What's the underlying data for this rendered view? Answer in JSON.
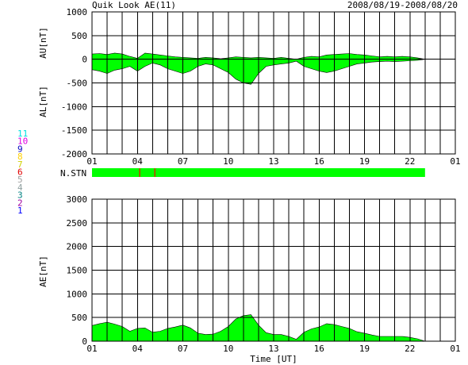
{
  "header": {
    "title": "Quik Look AE(11)",
    "date_range": "2008/08/19-2008/08/20"
  },
  "station_legend": {
    "labels": [
      "11",
      "10",
      "9",
      "8",
      "7",
      "6",
      "5",
      "4",
      "3",
      "2",
      "1"
    ],
    "colors": [
      "#00e0e0",
      "#e000e0",
      "#0000c0",
      "#ffd000",
      "#d0d000",
      "#e00000",
      "#a0a0a0",
      "#90a0a0",
      "#008080",
      "#a000a0",
      "#0000ff"
    ]
  },
  "colors": {
    "fill": "#00ff00",
    "line": "#000000",
    "grid": "#000000",
    "marker": "#ff0000"
  },
  "chart_data": [
    {
      "name": "au-al-panel",
      "type": "area",
      "ylabel_top": "AU[nT]",
      "ylabel_bottom": "AL[nT]",
      "ylim": [
        -2000,
        1000
      ],
      "yticks": [
        1000,
        500,
        0,
        -500,
        -1000,
        -1500,
        -2000
      ],
      "xlim": [
        1,
        25
      ],
      "xticks": [
        "01",
        "04",
        "07",
        "10",
        "13",
        "16",
        "19",
        "22",
        "01"
      ],
      "grid": true,
      "series": [
        {
          "key": "AU",
          "x": [
            1.0,
            1.5,
            2.0,
            2.5,
            3.0,
            3.5,
            4.0,
            4.5,
            5.0,
            5.5,
            6.0,
            6.5,
            7.0,
            7.5,
            8.0,
            8.5,
            9.0,
            9.5,
            10.0,
            10.5,
            11.0,
            11.5,
            12.0,
            12.5,
            13.0,
            13.5,
            14.0,
            14.5,
            15.0,
            15.5,
            16.0,
            16.5,
            17.0,
            17.5,
            18.0,
            18.5,
            19.0,
            19.5,
            20.0,
            20.5,
            21.0,
            21.5,
            22.0,
            22.5,
            23.0
          ],
          "values": [
            110,
            120,
            100,
            130,
            110,
            60,
            20,
            130,
            110,
            90,
            70,
            50,
            40,
            30,
            20,
            40,
            30,
            10,
            30,
            50,
            40,
            30,
            40,
            30,
            20,
            40,
            20,
            0,
            40,
            60,
            50,
            90,
            100,
            110,
            120,
            100,
            90,
            70,
            50,
            60,
            50,
            60,
            50,
            30,
            0
          ]
        },
        {
          "key": "AL",
          "x": [
            1.0,
            1.5,
            2.0,
            2.5,
            3.0,
            3.5,
            4.0,
            4.5,
            5.0,
            5.5,
            6.0,
            6.5,
            7.0,
            7.5,
            8.0,
            8.5,
            9.0,
            9.5,
            10.0,
            10.5,
            11.0,
            11.5,
            12.0,
            12.5,
            13.0,
            13.5,
            14.0,
            14.5,
            15.0,
            15.5,
            16.0,
            16.5,
            17.0,
            17.5,
            18.0,
            18.5,
            19.0,
            19.5,
            20.0,
            20.5,
            21.0,
            21.5,
            22.0,
            22.5,
            23.0
          ],
          "values": [
            -220,
            -250,
            -300,
            -230,
            -200,
            -150,
            -250,
            -150,
            -80,
            -120,
            -200,
            -250,
            -300,
            -250,
            -150,
            -100,
            -120,
            -200,
            -280,
            -420,
            -500,
            -530,
            -300,
            -150,
            -120,
            -100,
            -80,
            -40,
            -150,
            -200,
            -250,
            -280,
            -250,
            -200,
            -150,
            -100,
            -80,
            -60,
            -50,
            -40,
            -50,
            -40,
            -30,
            -20,
            0
          ]
        }
      ]
    },
    {
      "name": "n-stn-bar",
      "type": "bar",
      "label": "N.STN",
      "xlim": [
        1,
        25
      ],
      "coverage": [
        1,
        23
      ],
      "markers_x": [
        4.15,
        5.15
      ]
    },
    {
      "name": "ae-panel",
      "type": "area",
      "ylabel": "AE[nT]",
      "xlabel": "Time [UT]",
      "ylim": [
        0,
        3000
      ],
      "yticks": [
        3000,
        2500,
        2000,
        1500,
        1000,
        500,
        0
      ],
      "xlim": [
        1,
        25
      ],
      "xticks": [
        "01",
        "04",
        "07",
        "10",
        "13",
        "16",
        "19",
        "22",
        "01"
      ],
      "grid": true,
      "series": [
        {
          "key": "AE",
          "x": [
            1.0,
            1.5,
            2.0,
            2.5,
            3.0,
            3.5,
            4.0,
            4.5,
            5.0,
            5.5,
            6.0,
            6.5,
            7.0,
            7.5,
            8.0,
            8.5,
            9.0,
            9.5,
            10.0,
            10.5,
            11.0,
            11.5,
            12.0,
            12.5,
            13.0,
            13.5,
            14.0,
            14.5,
            15.0,
            15.5,
            16.0,
            16.5,
            17.0,
            17.5,
            18.0,
            18.5,
            19.0,
            19.5,
            20.0,
            20.5,
            21.0,
            21.5,
            22.0,
            22.5,
            23.0
          ],
          "values": [
            330,
            370,
            400,
            360,
            310,
            210,
            270,
            280,
            190,
            210,
            270,
            300,
            340,
            280,
            170,
            140,
            150,
            210,
            310,
            470,
            540,
            560,
            340,
            180,
            140,
            140,
            100,
            40,
            190,
            260,
            300,
            370,
            350,
            310,
            270,
            200,
            170,
            130,
            100,
            100,
            100,
            100,
            80,
            50,
            0
          ]
        }
      ]
    }
  ]
}
